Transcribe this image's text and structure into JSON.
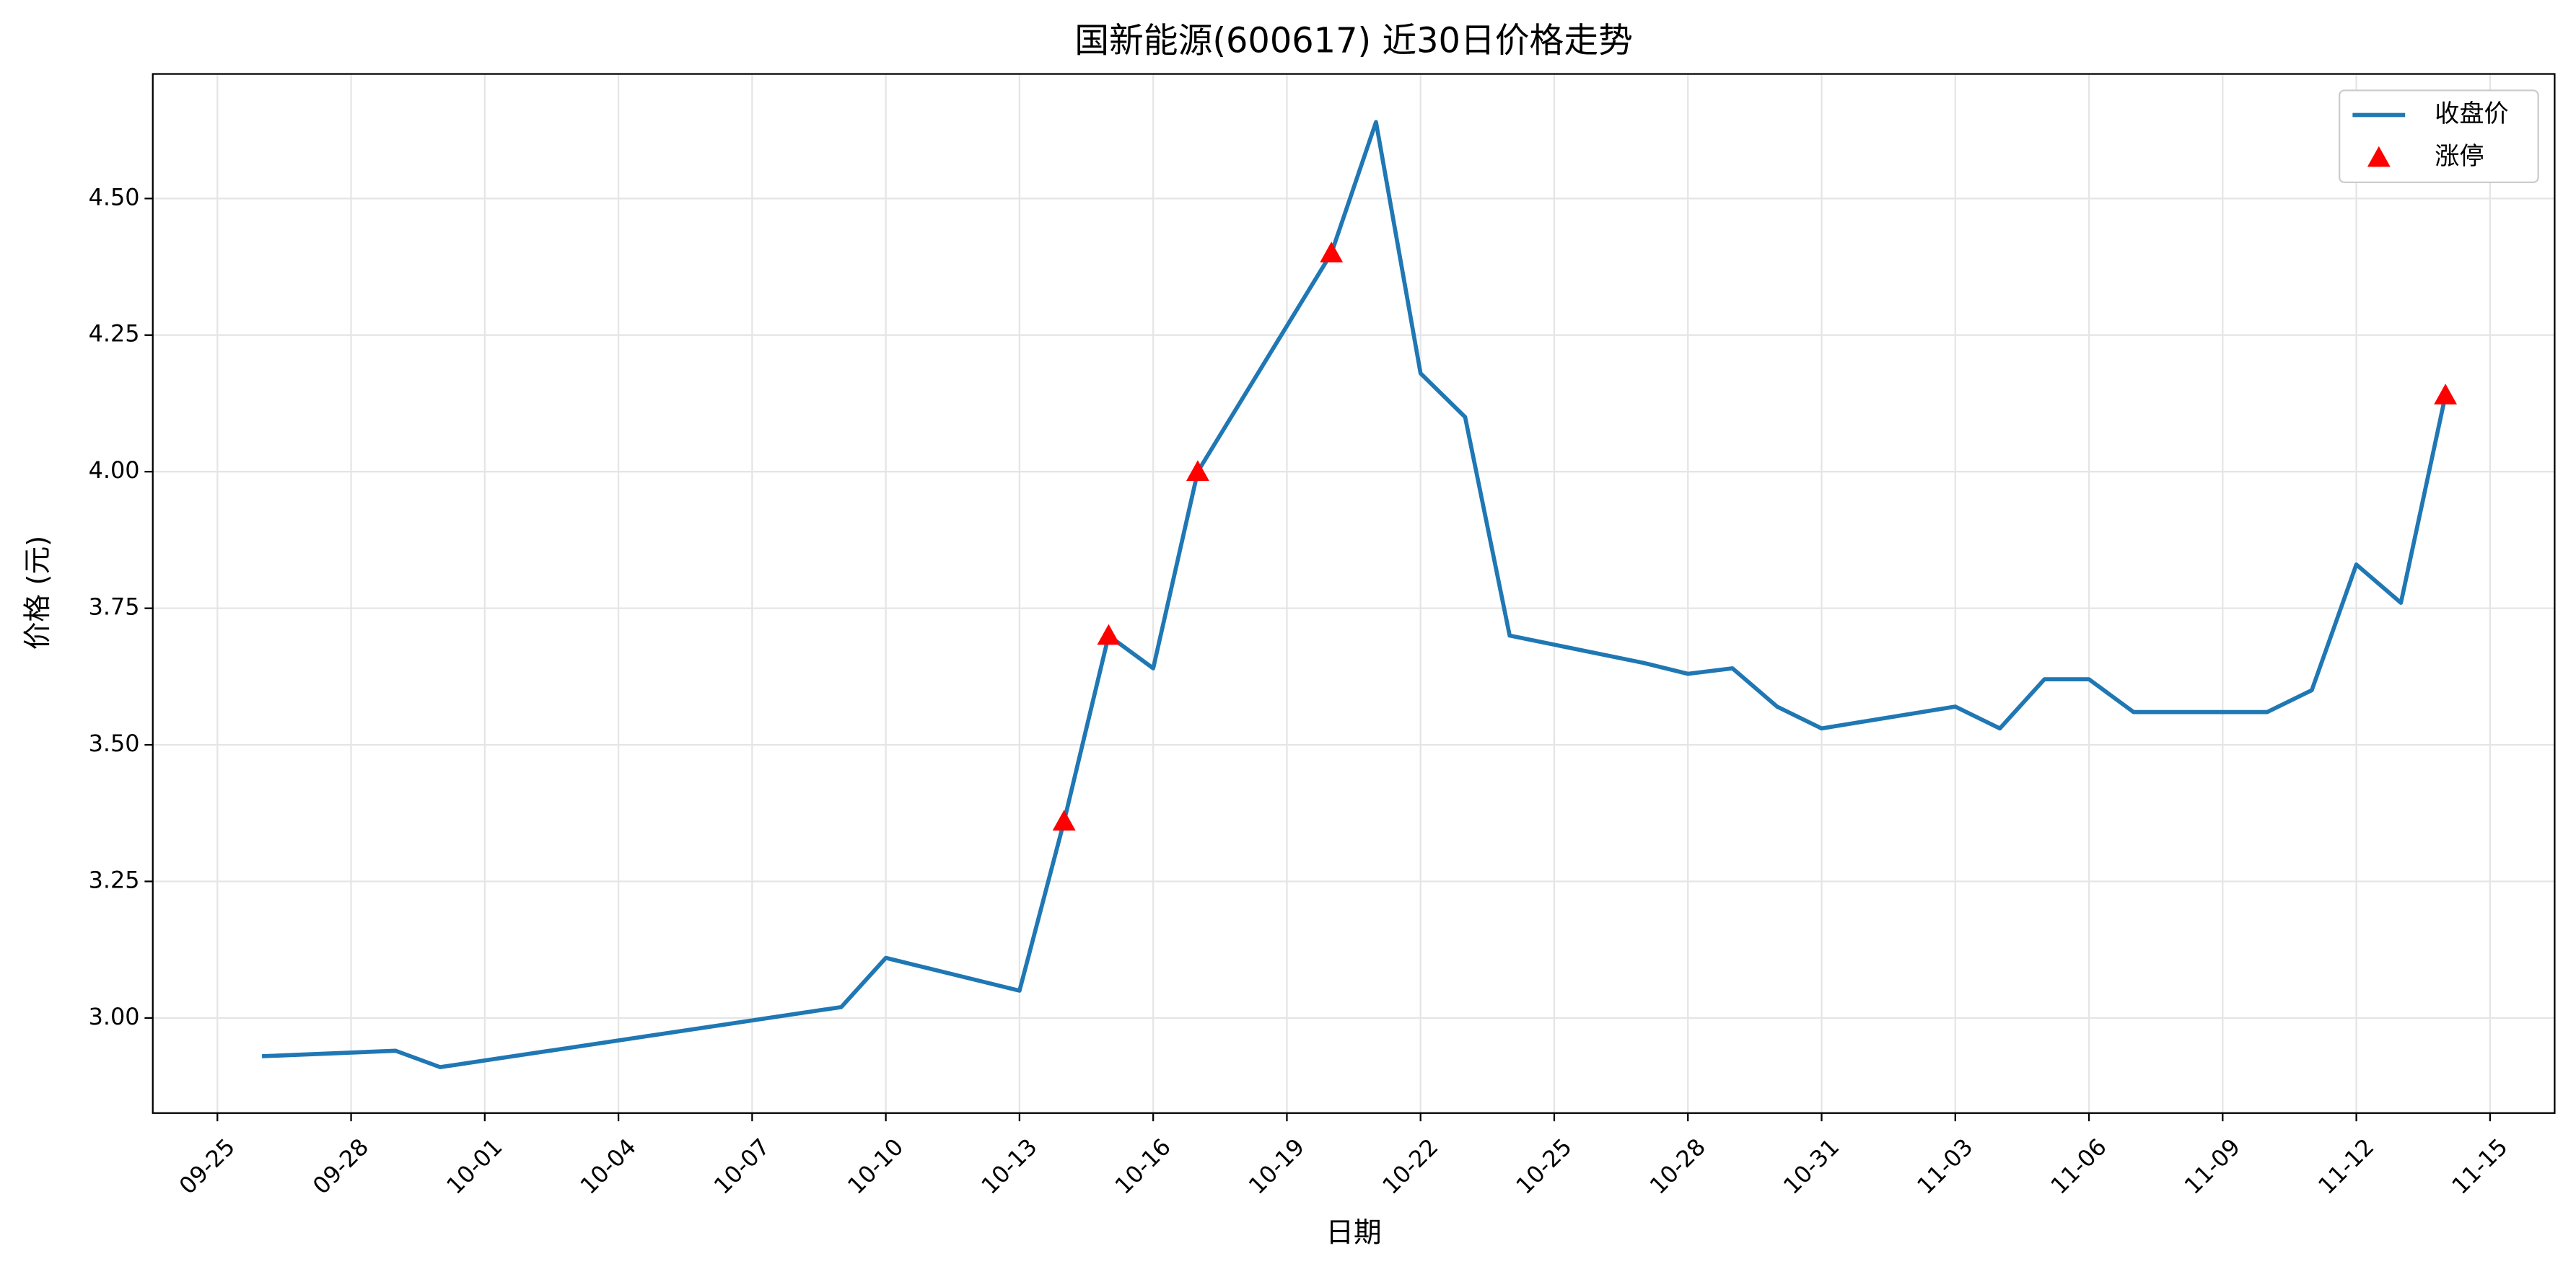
{
  "chart_data": {
    "type": "line",
    "title": "国新能源(600617) 近30日价格走势",
    "xlabel": "日期",
    "ylabel": "价格 (元)",
    "series": [
      {
        "name": "收盘价",
        "type": "line",
        "color": "#1f77b4",
        "x": [
          "09-26",
          "09-29",
          "09-30",
          "10-09",
          "10-10",
          "10-13",
          "10-14",
          "10-15",
          "10-16",
          "10-17",
          "10-20",
          "10-21",
          "10-22",
          "10-23",
          "10-24",
          "10-27",
          "10-28",
          "10-29",
          "10-30",
          "10-31",
          "11-03",
          "11-04",
          "11-05",
          "11-06",
          "11-07",
          "11-10",
          "11-11",
          "11-12",
          "11-13",
          "11-14"
        ],
        "values": [
          2.93,
          2.94,
          2.91,
          3.02,
          3.11,
          3.05,
          3.36,
          3.7,
          3.64,
          4.0,
          4.4,
          4.64,
          4.18,
          4.1,
          3.7,
          3.65,
          3.63,
          3.64,
          3.57,
          3.53,
          3.57,
          3.53,
          3.62,
          3.62,
          3.56,
          3.56,
          3.6,
          3.83,
          3.76,
          4.14
        ]
      },
      {
        "name": "涨停",
        "type": "scatter",
        "marker": "triangle",
        "color": "#ff0000",
        "x": [
          "10-14",
          "10-15",
          "10-17",
          "10-20",
          "11-14"
        ],
        "values": [
          3.36,
          3.7,
          4.0,
          4.4,
          4.14
        ]
      }
    ],
    "xticks": [
      "09-25",
      "09-28",
      "10-01",
      "10-04",
      "10-07",
      "10-10",
      "10-13",
      "10-16",
      "10-19",
      "10-22",
      "10-25",
      "10-28",
      "10-31",
      "11-03",
      "11-06",
      "11-09",
      "11-12",
      "11-15"
    ],
    "ylim": [
      2.826,
      4.728
    ],
    "yticks": [
      {
        "value": 3,
        "label": "3.00"
      },
      {
        "value": 3.25,
        "label": "3.25"
      },
      {
        "value": 3.5,
        "label": "3.50"
      },
      {
        "value": 3.75,
        "label": "3.75"
      },
      {
        "value": 4,
        "label": "4.00"
      },
      {
        "value": 4.25,
        "label": "4.25"
      },
      {
        "value": 4.5,
        "label": "4.50"
      }
    ],
    "grid": true,
    "legend": "upper right"
  }
}
